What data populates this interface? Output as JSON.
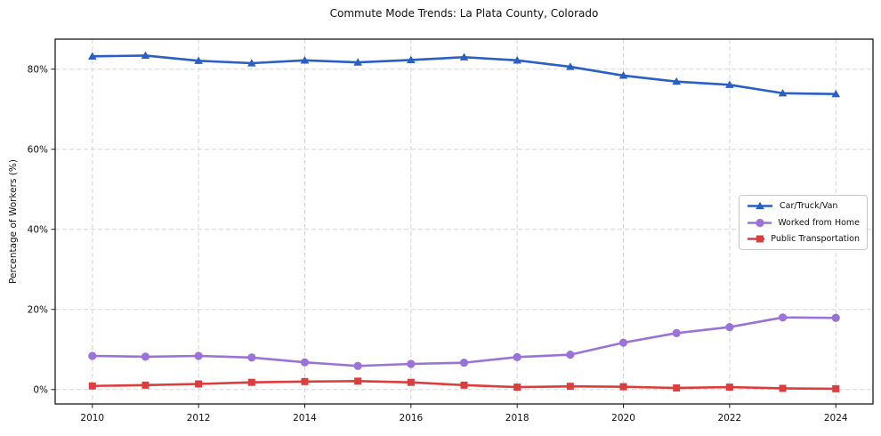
{
  "chart_data": {
    "type": "line",
    "title": "Commute Mode Trends: La Plata County, Colorado",
    "xlabel": "",
    "ylabel": "Percentage of Workers (%)",
    "x": [
      2010,
      2011,
      2012,
      2013,
      2014,
      2015,
      2016,
      2017,
      2018,
      2019,
      2020,
      2021,
      2022,
      2023,
      2024
    ],
    "xticks": [
      2010,
      2012,
      2014,
      2016,
      2018,
      2020,
      2022,
      2024
    ],
    "xticklabels": [
      "2010",
      "2012",
      "2014",
      "2016",
      "2018",
      "2020",
      "2022",
      "2024"
    ],
    "yticks": [
      0,
      20,
      40,
      60,
      80
    ],
    "yticklabels": [
      "0%",
      "20%",
      "40%",
      "60%",
      "80%"
    ],
    "xlim": [
      2009.3,
      2024.7
    ],
    "ylim": [
      -3.6,
      87.5
    ],
    "grid": true,
    "grid_style": "dashed",
    "legend_position": "center right",
    "series": [
      {
        "name": "Car/Truck/Van",
        "marker": "triangle",
        "color": "#2a5fc4",
        "values": [
          83.2,
          83.4,
          82.1,
          81.5,
          82.2,
          81.7,
          82.3,
          83.0,
          82.2,
          80.6,
          78.4,
          76.9,
          76.1,
          74.0,
          73.8
        ]
      },
      {
        "name": "Worked from Home",
        "marker": "circle",
        "color": "#9b72d8",
        "values": [
          8.4,
          8.2,
          8.4,
          8.0,
          6.8,
          5.9,
          6.4,
          6.7,
          8.1,
          8.7,
          11.7,
          14.1,
          15.6,
          18.0,
          17.9
        ]
      },
      {
        "name": "Public Transportation",
        "marker": "square",
        "color": "#dc3d3d",
        "values": [
          0.9,
          1.1,
          1.4,
          1.8,
          2.0,
          2.1,
          1.8,
          1.1,
          0.6,
          0.8,
          0.7,
          0.4,
          0.6,
          0.3,
          0.2
        ]
      }
    ]
  }
}
